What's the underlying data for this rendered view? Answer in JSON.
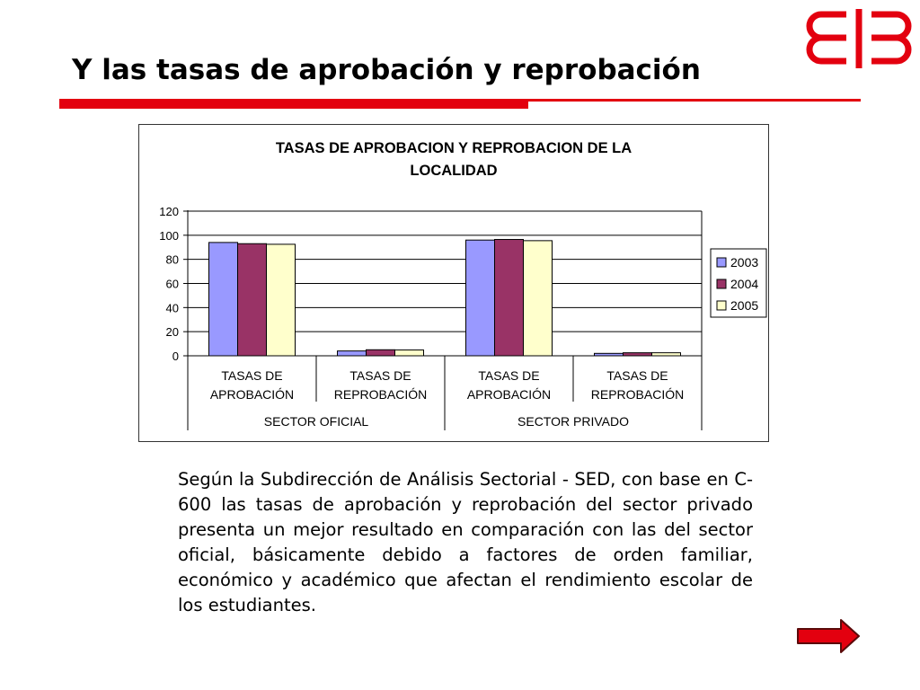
{
  "slide": {
    "title": "Y las tasas de aprobación y reprobación",
    "body": "Según la Subdirección de Análisis Sectorial  - SED, con base en C-600 las tasas de aprobación y reprobación del sector privado presenta un mejor resultado en comparación con las del sector oficial, básicamente debido a factores de orden familiar, económico y académico que afectan el rendimiento escolar de los estudiantes."
  },
  "logo": {
    "icon": "institution-logo-icon",
    "color": "#e3000f"
  },
  "nav": {
    "next_icon": "right-arrow-icon",
    "color": "#e3000f"
  },
  "colors": {
    "accent": "#e3000f"
  },
  "chart_data": {
    "type": "bar",
    "title": "TASAS DE APROBACION Y REPROBACION DE LA LOCALIDAD",
    "categories": [
      [
        "TASAS DE",
        "APROBACIÓN"
      ],
      [
        "TASAS DE",
        "REPROBACIÓN"
      ],
      [
        "TASAS DE",
        "APROBACIÓN"
      ],
      [
        "TASAS DE",
        "REPROBACIÓN"
      ]
    ],
    "groups": [
      {
        "label": "SECTOR OFICIAL",
        "categories": [
          0,
          1
        ]
      },
      {
        "label": "SECTOR PRIVADO",
        "categories": [
          2,
          3
        ]
      }
    ],
    "series": [
      {
        "name": "2003",
        "color": "#9999ff",
        "values": [
          94,
          4,
          96,
          2
        ]
      },
      {
        "name": "2004",
        "color": "#993366",
        "values": [
          93,
          5,
          96.5,
          2.5
        ]
      },
      {
        "name": "2005",
        "color": "#ffffcc",
        "values": [
          92.5,
          4.8,
          95.5,
          2.5
        ]
      }
    ],
    "ylim": [
      0,
      120
    ],
    "yticks": [
      0,
      20,
      40,
      60,
      80,
      100,
      120
    ],
    "grid": true,
    "legend": "right"
  }
}
